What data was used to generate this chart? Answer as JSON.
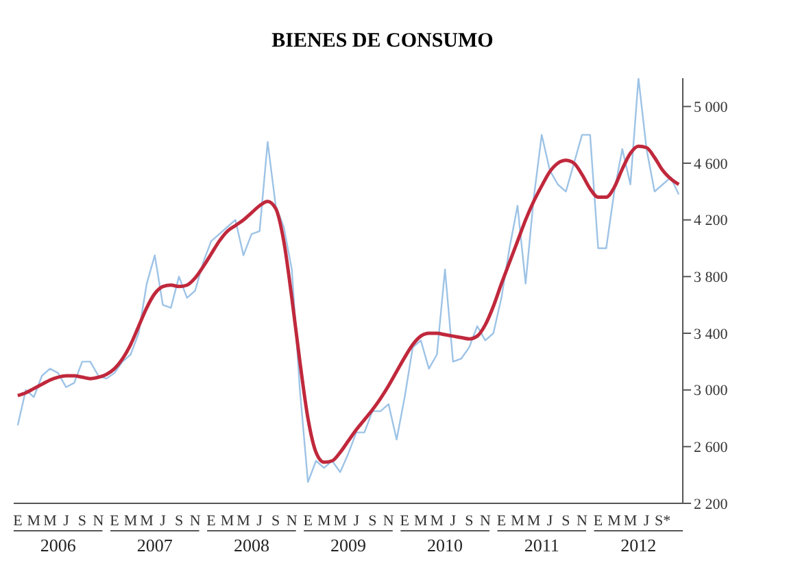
{
  "chart_data": {
    "type": "line",
    "title": "BIENES DE CONSUMO",
    "categories": [
      "E",
      null,
      "M",
      null,
      "M",
      null,
      "J",
      null,
      "S",
      null,
      "N",
      null,
      "E",
      null,
      "M",
      null,
      "M",
      null,
      "J",
      null,
      "S",
      null,
      "N",
      null,
      "E",
      null,
      "M",
      null,
      "M",
      null,
      "J",
      null,
      "S",
      null,
      "N",
      null,
      "E",
      null,
      "M",
      null,
      "M",
      null,
      "J",
      null,
      "S",
      null,
      "N",
      null,
      "E",
      null,
      "M",
      null,
      "M",
      null,
      "J",
      null,
      "S",
      null,
      "N",
      null,
      "E",
      null,
      "M",
      null,
      "M",
      null,
      "J",
      null,
      "S",
      null,
      "N",
      null,
      "E",
      null,
      "M",
      null,
      "M",
      null,
      "J",
      null,
      "S*",
      null,
      null
    ],
    "series": [
      {
        "color": "#9dc3e6",
        "values": [
          2750,
          3000,
          2950,
          3100,
          3150,
          3120,
          3020,
          3050,
          3200,
          3200,
          3100,
          3080,
          3120,
          3200,
          3250,
          3400,
          3750,
          3950,
          3600,
          3580,
          3800,
          3650,
          3700,
          3900,
          4050,
          4100,
          4150,
          4200,
          3950,
          4100,
          4120,
          4750,
          4300,
          4150,
          3850,
          3000,
          2350,
          2500,
          2450,
          2500,
          2420,
          2550,
          2700,
          2700,
          2850,
          2850,
          2900,
          2650,
          2950,
          3300,
          3350,
          3150,
          3250,
          3850,
          3200,
          3220,
          3300,
          3450,
          3350,
          3400,
          3650,
          4000,
          4300,
          3750,
          4350,
          4800,
          4550,
          4450,
          4400,
          4600,
          4800,
          4800,
          4000,
          4000,
          4400,
          4700,
          4450,
          5200,
          4700,
          4400,
          4450,
          4500,
          4380
        ]
      },
      {
        "color": "#c0283c",
        "values": [
          2960,
          2980,
          3010,
          3040,
          3070,
          3090,
          3100,
          3100,
          3090,
          3080,
          3090,
          3110,
          3150,
          3220,
          3320,
          3450,
          3580,
          3680,
          3730,
          3740,
          3730,
          3740,
          3790,
          3870,
          3960,
          4050,
          4120,
          4160,
          4200,
          4250,
          4300,
          4330,
          4280,
          4050,
          3650,
          3200,
          2800,
          2560,
          2490,
          2500,
          2560,
          2640,
          2720,
          2790,
          2860,
          2940,
          3030,
          3130,
          3230,
          3320,
          3380,
          3400,
          3400,
          3390,
          3380,
          3370,
          3360,
          3380,
          3460,
          3590,
          3750,
          3900,
          4050,
          4200,
          4330,
          4440,
          4540,
          4600,
          4620,
          4600,
          4520,
          4420,
          4360,
          4360,
          4430,
          4560,
          4670,
          4720,
          4710,
          4640,
          4550,
          4490,
          4450
        ]
      }
    ],
    "ylim": [
      2200,
      5200
    ],
    "yticks": [
      2200,
      2600,
      3000,
      3400,
      3800,
      4200,
      4600,
      5000
    ],
    "annotations": [
      "2006",
      "2007",
      "2008",
      "2009",
      "2010",
      "2011",
      "2012"
    ],
    "grid": false,
    "legend": false,
    "marker": "none",
    "line_style": "solid"
  }
}
